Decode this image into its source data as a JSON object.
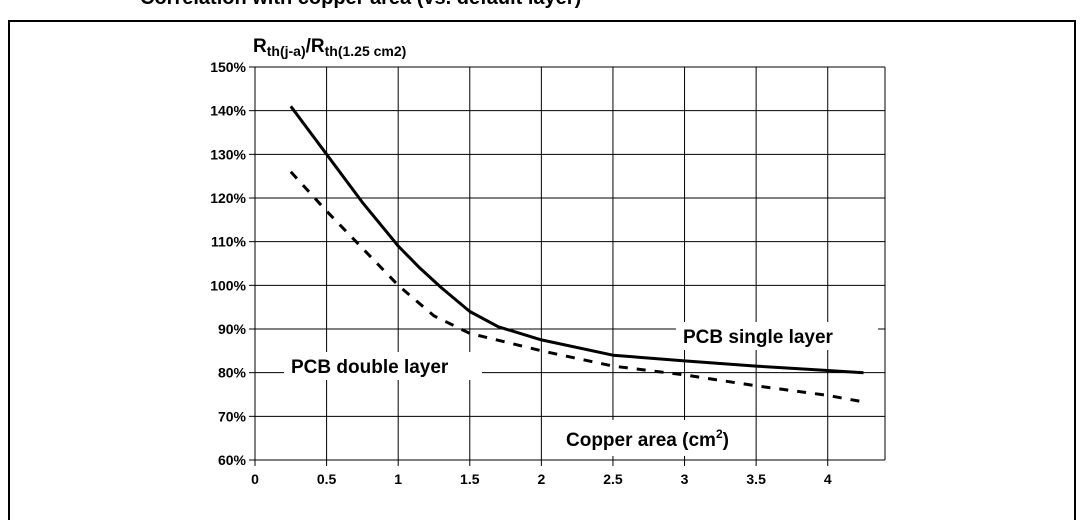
{
  "header": {
    "caption": "Correlation with copper area (vs. default layer)"
  },
  "chart_data": {
    "type": "line",
    "ylabel_main": "R",
    "ylabel_sub1": "th(j-a)",
    "ylabel_sep": "/R",
    "ylabel_sub2": "th(1.25 cm2)",
    "xlabel": "Copper area (cm",
    "xlabel_sup": "2",
    "xlabel_end": ")",
    "xlim": [
      0,
      4.4
    ],
    "ylim": [
      60,
      150
    ],
    "x_ticks": [
      0,
      0.5,
      1,
      1.5,
      2,
      2.5,
      3,
      3.5,
      4
    ],
    "x_tick_labels": [
      "0",
      "0.5",
      "1",
      "1.5",
      "2",
      "2.5",
      "3",
      "3.5",
      "4"
    ],
    "y_ticks": [
      60,
      70,
      80,
      90,
      100,
      110,
      120,
      130,
      140,
      150
    ],
    "y_tick_labels": [
      "60%",
      "70%",
      "80%",
      "90%",
      "100%",
      "110%",
      "120%",
      "130%",
      "140%",
      "150%"
    ],
    "grid": true,
    "series": [
      {
        "name": "PCB single layer",
        "style": "solid",
        "x": [
          0.25,
          0.5,
          0.75,
          0.9,
          1.0,
          1.15,
          1.3,
          1.5,
          1.7,
          2.0,
          2.5,
          3.0,
          3.5,
          4.0,
          4.25
        ],
        "y": [
          141,
          130,
          119,
          113,
          109,
          104,
          99.5,
          94,
          90.5,
          87.5,
          84,
          82.7,
          81.5,
          80.5,
          80
        ]
      },
      {
        "name": "PCB double layer",
        "style": "dashed",
        "x": [
          0.25,
          0.5,
          0.75,
          1.0,
          1.25,
          1.5,
          2.0,
          2.5,
          3.0,
          3.5,
          4.0,
          4.25
        ],
        "y": [
          126,
          117,
          108.5,
          100,
          93,
          89,
          85,
          81.5,
          79.5,
          77,
          74.8,
          73.3
        ]
      }
    ]
  }
}
